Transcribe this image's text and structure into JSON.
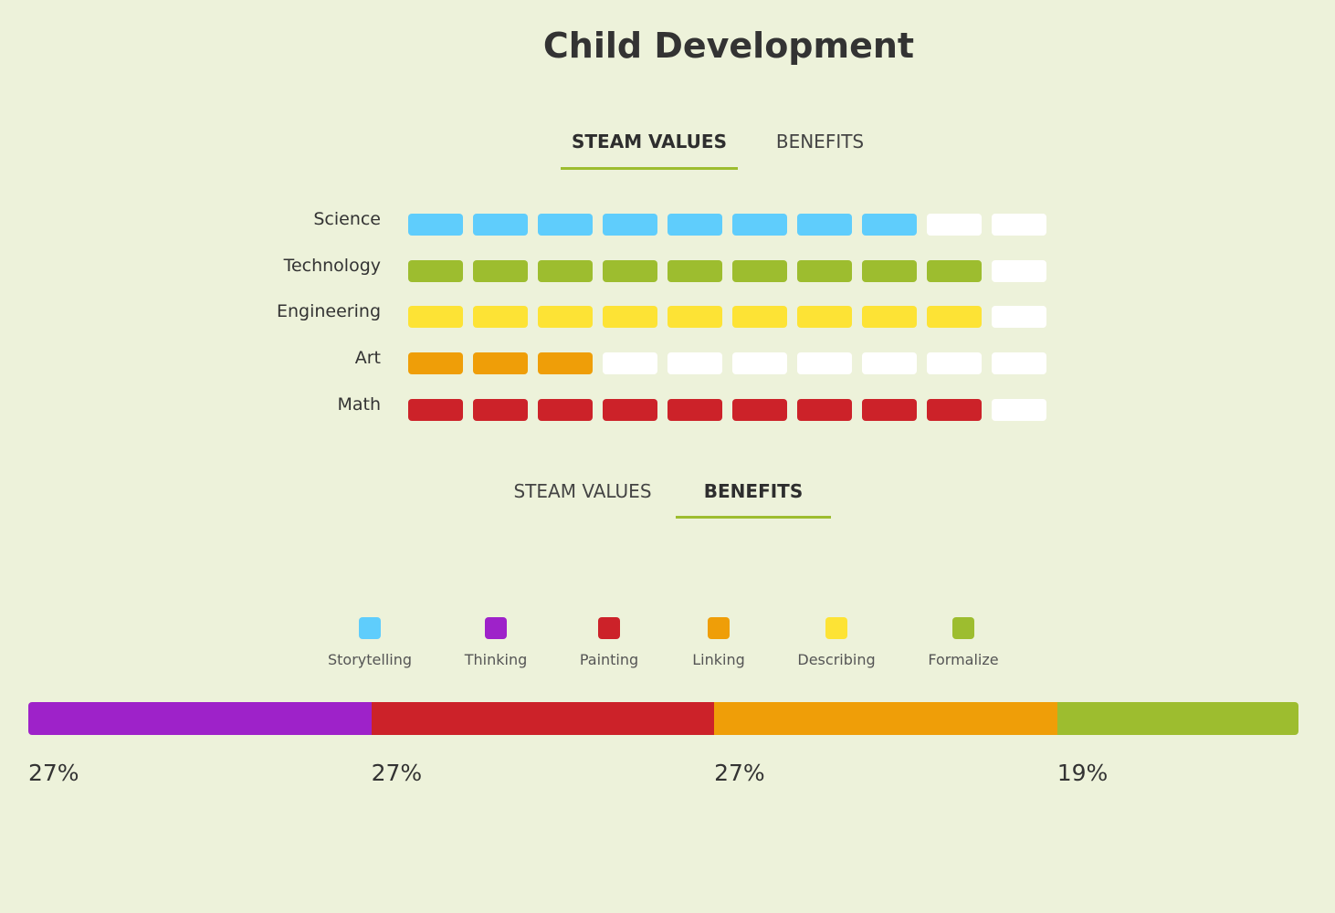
{
  "title": "Child Development",
  "tabs_top": [
    {
      "label": "STEAM VALUES",
      "active": true
    },
    {
      "label": "BENEFITS",
      "active": false
    }
  ],
  "tabs_bottom": [
    {
      "label": "STEAM VALUES",
      "active": false
    },
    {
      "label": "BENEFITS",
      "active": true
    }
  ],
  "colors": {
    "empty": "#ffffff",
    "underline": "#9dbd2f"
  },
  "chart_data": [
    {
      "type": "table",
      "title": "STEAM VALUES",
      "max": 10,
      "categories": [
        "Science",
        "Technology",
        "Engineering",
        "Art",
        "Math"
      ],
      "values": [
        8,
        9,
        9,
        3,
        9
      ],
      "colors": [
        "#5fcdfc",
        "#9dbd2f",
        "#fde335",
        "#ef9e08",
        "#cc2229"
      ]
    },
    {
      "type": "bar",
      "title": "BENEFITS",
      "legend": [
        {
          "label": "Storytelling",
          "color": "#5fcdfc"
        },
        {
          "label": "Thinking",
          "color": "#9e22c9"
        },
        {
          "label": "Painting",
          "color": "#cc2229"
        },
        {
          "label": "Linking",
          "color": "#ef9e08"
        },
        {
          "label": "Describing",
          "color": "#fde335"
        },
        {
          "label": "Formalize",
          "color": "#9dbd2f"
        }
      ],
      "segments": [
        {
          "series": "Thinking",
          "value": 27,
          "label": "27%",
          "color": "#9e22c9"
        },
        {
          "series": "Painting",
          "value": 27,
          "label": "27%",
          "color": "#cc2229"
        },
        {
          "series": "Linking",
          "value": 27,
          "label": "27%",
          "color": "#ef9e08"
        },
        {
          "series": "Formalize",
          "value": 19,
          "label": "19%",
          "color": "#9dbd2f"
        }
      ]
    }
  ]
}
